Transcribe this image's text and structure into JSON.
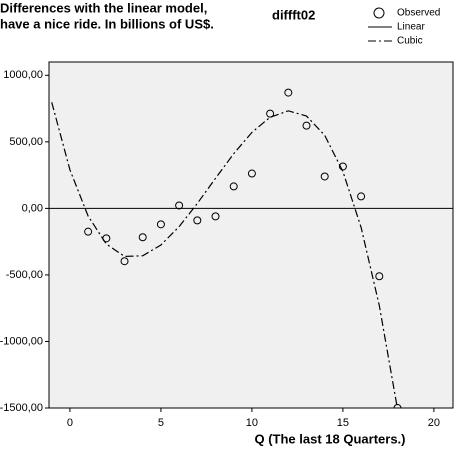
{
  "chart_data": {
    "type": "scatter",
    "title": [
      "Differences with the linear model,",
      "have a nice ride. In billions of US$."
    ],
    "subtitle": "diffft02",
    "x_label": "Q (The last 18 Quarters.)",
    "xlim": [
      -1.15,
      21.05
    ],
    "xticks": [
      0,
      5,
      10,
      15,
      20
    ],
    "ylim": [
      -1500,
      1100
    ],
    "yticks": [
      {
        "value": 1000,
        "label": "1000,00"
      },
      {
        "value": 500,
        "label": "500,00"
      },
      {
        "value": 0,
        "label": "0,00"
      },
      {
        "value": -500,
        "label": "-500,00"
      },
      {
        "value": -1000,
        "label": "-1000,00"
      },
      {
        "value": -1500,
        "label": "-1500,00"
      }
    ],
    "reference_line": 0,
    "background": "#f0f0f0",
    "series": [
      {
        "name": "Observed",
        "marker": "circle",
        "color": "#000000",
        "x": [
          1,
          2,
          3,
          4,
          5,
          6,
          7,
          8,
          9,
          10,
          11,
          12,
          13,
          14,
          15,
          16,
          17,
          18
        ],
        "values": [
          -175,
          -225,
          -397,
          -217,
          -120,
          22,
          -90,
          -60,
          165,
          262,
          712,
          870,
          622,
          240,
          315,
          90,
          -510,
          -1500
        ]
      },
      {
        "name": "Linear",
        "line": "solid",
        "color": "#000000"
      },
      {
        "name": "Cubic",
        "line": "dashdot",
        "color": "#000000",
        "x": [
          -1,
          0,
          1,
          2,
          3,
          4,
          5,
          6,
          7,
          8,
          9,
          10,
          11,
          12,
          13,
          14,
          15,
          16,
          17,
          18
        ],
        "values": [
          797,
          290,
          -58,
          -268,
          -361,
          -356,
          -275,
          -137,
          37,
          226,
          411,
          571,
          685,
          733,
          694,
          549,
          277,
          -143,
          -730,
          -1507
        ]
      }
    ]
  }
}
